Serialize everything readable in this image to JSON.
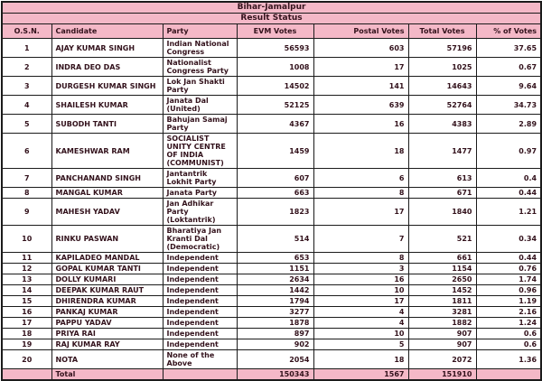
{
  "header": {
    "title": "Bihar-Jamalpur",
    "subtitle": "Result Status"
  },
  "table": {
    "columns": [
      "O.S.N.",
      "Candidate",
      "Party",
      "EVM Votes",
      "Postal Votes",
      "Total Votes",
      "% of Votes"
    ],
    "rows": [
      [
        "1",
        "AJAY KUMAR SINGH",
        "Indian National Congress",
        "56593",
        "603",
        "57196",
        "37.65"
      ],
      [
        "2",
        "INDRA DEO DAS",
        "Nationalist Congress Party",
        "1008",
        "17",
        "1025",
        "0.67"
      ],
      [
        "3",
        "DURGESH KUMAR SINGH",
        "Lok Jan Shakti Party",
        "14502",
        "141",
        "14643",
        "9.64"
      ],
      [
        "4",
        "SHAILESH KUMAR",
        "Janata Dal (United)",
        "52125",
        "639",
        "52764",
        "34.73"
      ],
      [
        "5",
        "SUBODH TANTI",
        "Bahujan Samaj Party",
        "4367",
        "16",
        "4383",
        "2.89"
      ],
      [
        "6",
        "KAMESHWAR RAM",
        "SOCIALIST UNITY CENTRE OF INDIA (COMMUNIST)",
        "1459",
        "18",
        "1477",
        "0.97"
      ],
      [
        "7",
        "PANCHANAND SINGH",
        "Jantantrik Lokhit Party",
        "607",
        "6",
        "613",
        "0.4"
      ],
      [
        "8",
        "MANGAL KUMAR",
        "Janata Party",
        "663",
        "8",
        "671",
        "0.44"
      ],
      [
        "9",
        "MAHESH YADAV",
        "Jan Adhikar Party (Loktantrik)",
        "1823",
        "17",
        "1840",
        "1.21"
      ],
      [
        "10",
        "RINKU PASWAN",
        "Bharatiya Jan Kranti Dal (Democratic)",
        "514",
        "7",
        "521",
        "0.34"
      ],
      [
        "11",
        "KAPILADEO MANDAL",
        "Independent",
        "653",
        "8",
        "661",
        "0.44"
      ],
      [
        "12",
        "GOPAL KUMAR TANTI",
        "Independent",
        "1151",
        "3",
        "1154",
        "0.76"
      ],
      [
        "13",
        "DOLLY KUMARI",
        "Independent",
        "2634",
        "16",
        "2650",
        "1.74"
      ],
      [
        "14",
        "DEEPAK KUMAR RAUT",
        "Independent",
        "1442",
        "10",
        "1452",
        "0.96"
      ],
      [
        "15",
        "DHIRENDRA KUMAR",
        "Independent",
        "1794",
        "17",
        "1811",
        "1.19"
      ],
      [
        "16",
        "PANKAJ KUMAR",
        "Independent",
        "3277",
        "4",
        "3281",
        "2.16"
      ],
      [
        "17",
        "PAPPU YADAV",
        "Independent",
        "1878",
        "4",
        "1882",
        "1.24"
      ],
      [
        "18",
        "PRIYA RAI",
        "Independent",
        "897",
        "10",
        "907",
        "0.6"
      ],
      [
        "19",
        "RAJ KUMAR RAY",
        "Independent",
        "902",
        "5",
        "907",
        "0.6"
      ],
      [
        "20",
        "NOTA",
        "None of the Above",
        "2054",
        "18",
        "2072",
        "1.36"
      ]
    ],
    "total_row": {
      "label": "Total",
      "evm_votes": "150343",
      "postal_votes": "1567",
      "total_votes": "151910",
      "percent_votes": ""
    }
  },
  "colors": {
    "header_pink": "#f4b8c7",
    "border": "#1b1b1b",
    "text": "#33121c",
    "row_bg": "#ffffff"
  }
}
